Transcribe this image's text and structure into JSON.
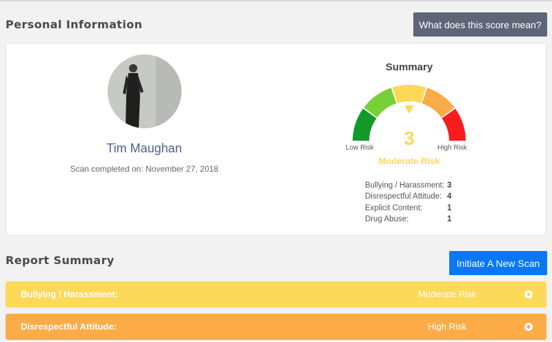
{
  "personal_section": {
    "title": "Personal Information",
    "score_button_label": "What does this score mean?"
  },
  "profile": {
    "name": "Tim Maughan",
    "scan_completed": "Scan completed on: November 27, 2018"
  },
  "summary": {
    "title": "Summary",
    "score": "3",
    "risk_level": "Moderate Risk",
    "low_label": "Low Risk",
    "high_label": "High Risk",
    "gauge_colors": [
      "#119a2a",
      "#78d038",
      "#fdd95a",
      "#fdab47",
      "#f81d1d"
    ],
    "gauge_position": 3,
    "breakdown": [
      {
        "label": "Bullying / Harassment:",
        "value": "3"
      },
      {
        "label": "Disrespectful Attitude:",
        "value": "4"
      },
      {
        "label": "Explicit Content:",
        "value": "1"
      },
      {
        "label": "Drug Abuse:",
        "value": "1"
      }
    ]
  },
  "report_section": {
    "title": "Report Summary",
    "new_scan_button_label": "Initiate A New Scan",
    "rows": [
      {
        "category": "Bullying / Harassment:",
        "level": "Moderate Risk",
        "color": "#fdd95a"
      },
      {
        "category": "Disrespectful Attitude:",
        "level": "High Risk",
        "color": "#fdab47"
      }
    ]
  }
}
